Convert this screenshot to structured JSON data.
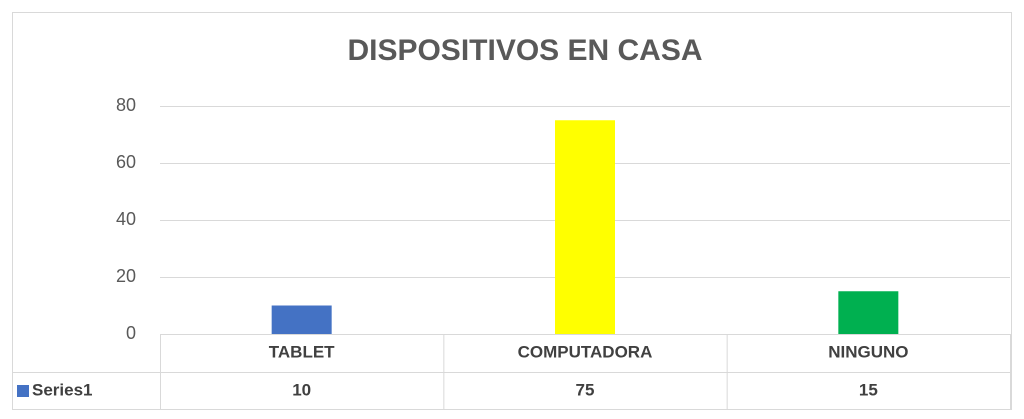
{
  "chart_data": {
    "type": "bar",
    "title": "DISPOSITIVOS EN CASA",
    "categories": [
      "TABLET",
      "COMPUTADORA",
      "NINGUNO"
    ],
    "series": [
      {
        "name": "Series1",
        "color": "#4472c4",
        "values": [
          10,
          75,
          15
        ]
      }
    ],
    "bar_colors": [
      "#4472c4",
      "#ffff00",
      "#00b050"
    ],
    "ylim": [
      0,
      80
    ],
    "yticks": [
      0,
      20,
      40,
      60,
      80
    ],
    "grid": true,
    "data_table": true
  }
}
